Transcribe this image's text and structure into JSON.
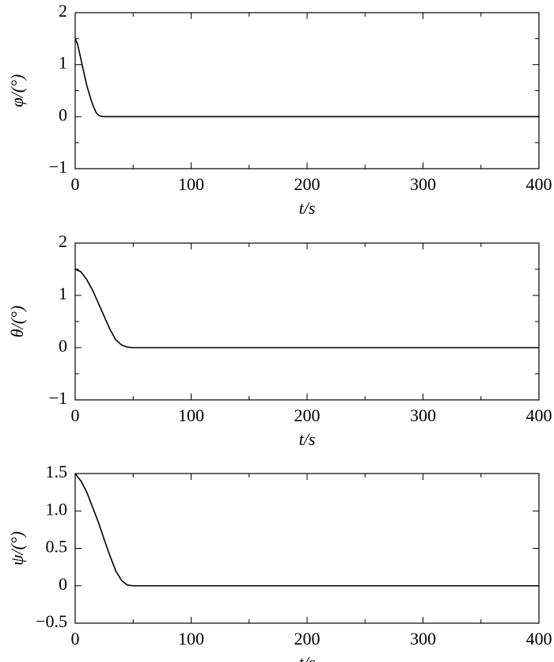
{
  "chart_data": [
    {
      "type": "line",
      "ylabel": "φ/(°)",
      "xlabel": "t/s",
      "x": [
        0,
        2,
        4,
        6,
        8,
        10,
        12,
        14,
        16,
        18,
        20,
        22,
        25,
        400
      ],
      "values": [
        1.5,
        1.4,
        1.2,
        1.0,
        0.8,
        0.6,
        0.45,
        0.3,
        0.18,
        0.08,
        0.03,
        0.01,
        0,
        0
      ],
      "color": "#000000",
      "xlim": [
        0,
        400
      ],
      "ylim": [
        -1,
        2
      ],
      "xticks": [
        0,
        100,
        200,
        300,
        400
      ],
      "yticks": [
        {
          "value": -1,
          "label": "−1"
        },
        0,
        1,
        2
      ],
      "minor_xticks": [
        50,
        150,
        250,
        350
      ],
      "minor_yticks": [
        -0.5,
        0.5,
        1.5
      ]
    },
    {
      "type": "line",
      "ylabel": "θ/(°)",
      "xlabel": "t/s",
      "x": [
        0,
        5,
        10,
        15,
        20,
        25,
        30,
        35,
        40,
        45,
        50,
        400
      ],
      "values": [
        1.5,
        1.45,
        1.3,
        1.1,
        0.85,
        0.6,
        0.35,
        0.15,
        0.05,
        0.01,
        0,
        0
      ],
      "color": "#000000",
      "xlim": [
        0,
        400
      ],
      "ylim": [
        -1,
        2
      ],
      "xticks": [
        0,
        100,
        200,
        300,
        400
      ],
      "yticks": [
        {
          "value": -1,
          "label": "−1"
        },
        0,
        1,
        2
      ],
      "minor_xticks": [
        50,
        150,
        250,
        350
      ],
      "minor_yticks": [
        -0.5,
        0.5,
        1.5
      ]
    },
    {
      "type": "line",
      "ylabel": "ψ/(°)",
      "xlabel": "t/s",
      "x": [
        0,
        5,
        10,
        15,
        20,
        25,
        30,
        35,
        40,
        45,
        50,
        400
      ],
      "values": [
        1.5,
        1.4,
        1.25,
        1.05,
        0.85,
        0.62,
        0.4,
        0.2,
        0.07,
        0.01,
        0,
        0
      ],
      "color": "#000000",
      "xlim": [
        0,
        400
      ],
      "ylim": [
        -0.5,
        1.5
      ],
      "xticks": [
        0,
        100,
        200,
        300,
        400
      ],
      "yticks": [
        {
          "value": -0.5,
          "label": "−0.5"
        },
        0,
        {
          "value": 0.5,
          "label": "0.5"
        },
        {
          "value": 1,
          "label": "1.0"
        },
        {
          "value": 1.5,
          "label": "1.5"
        }
      ],
      "minor_xticks": [
        50,
        150,
        250,
        350
      ],
      "minor_yticks": []
    }
  ]
}
